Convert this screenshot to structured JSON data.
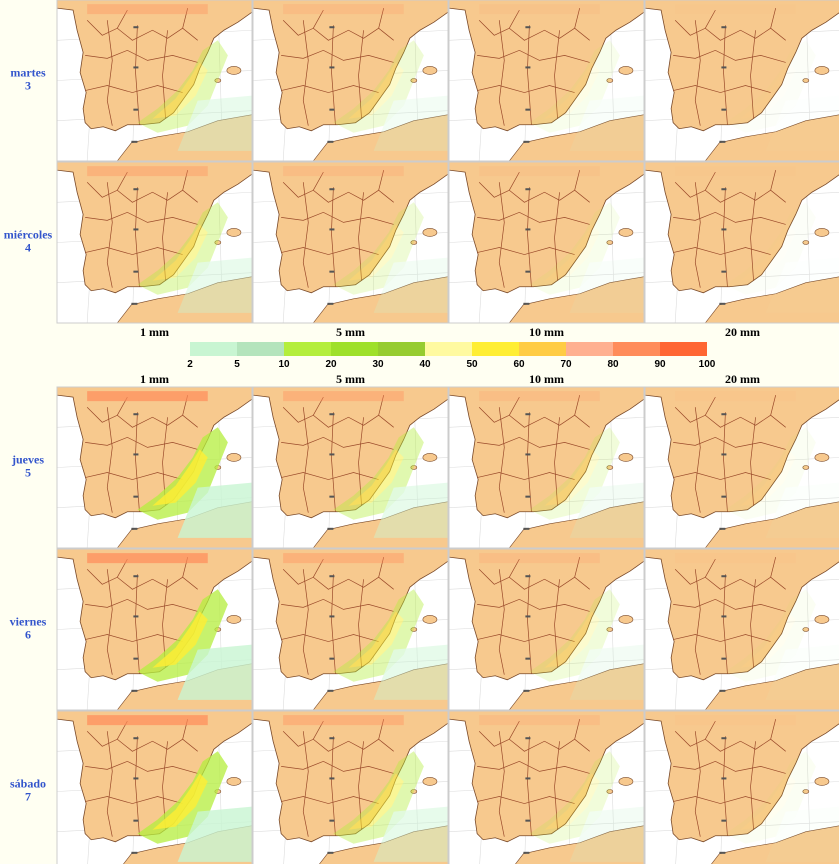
{
  "rows_top": [
    {
      "day": "martes",
      "date": "3"
    },
    {
      "day": "miércoles",
      "date": "4"
    }
  ],
  "columns_top": [
    "1 mm",
    "5 mm",
    "10 mm",
    "20 mm"
  ],
  "colorbar": {
    "ticks": [
      "2",
      "5",
      "10",
      "20",
      "30",
      "40",
      "50",
      "60",
      "70",
      "80",
      "90",
      "100"
    ],
    "colors": [
      "#c8f5d2",
      "#b4e4bc",
      "#b4ee3c",
      "#9ee02a",
      "#96cc30",
      "#fffaa0",
      "#ffee33",
      "#ffcc44",
      "#ffb090",
      "#ff8c5a",
      "#ff6633"
    ]
  },
  "columns_bottom": [
    "1 mm",
    "5 mm",
    "10 mm",
    "20 mm"
  ],
  "rows_bottom": [
    {
      "day": "jueves",
      "date": "5"
    },
    {
      "day": "viernes",
      "date": "6"
    },
    {
      "day": "sábado",
      "date": "7"
    }
  ]
}
